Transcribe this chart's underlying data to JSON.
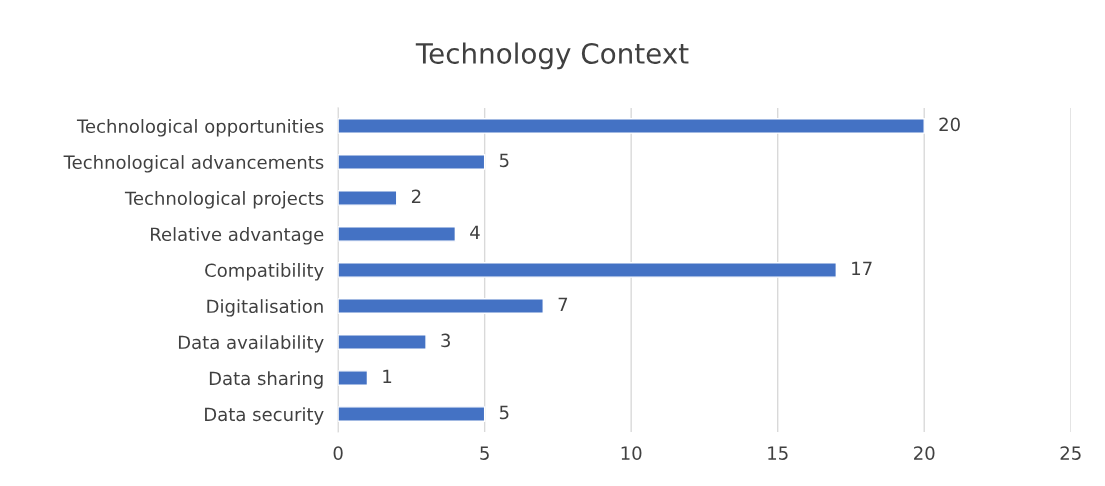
{
  "chart_data": {
    "type": "bar",
    "orientation": "horizontal",
    "title": "Technology Context",
    "categories": [
      "Technological opportunities",
      "Technological advancements",
      "Technological projects",
      "Relative advantage",
      "Compatibility",
      "Digitalisation",
      "Data availability",
      "Data sharing",
      "Data security"
    ],
    "values": [
      20,
      5,
      2,
      4,
      17,
      7,
      3,
      1,
      5
    ],
    "color": "#4472c4",
    "xlim": [
      0,
      25
    ],
    "xticks": [
      0,
      5,
      10,
      15,
      20,
      25
    ],
    "grid": "x",
    "data_labels": true
  }
}
